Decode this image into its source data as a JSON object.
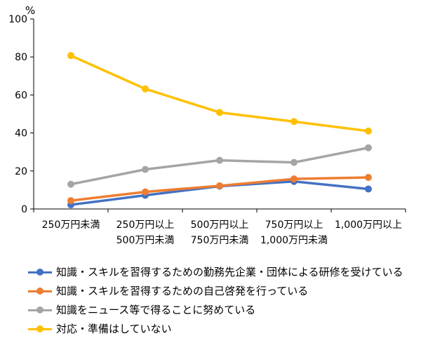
{
  "chart_data": {
    "type": "line",
    "unit_label": "%",
    "y_ticks": [
      "0",
      "20",
      "40",
      "60",
      "80",
      "100"
    ],
    "ylim": [
      0,
      100
    ],
    "grid": false,
    "legend_position": "bottom",
    "categories": [
      [
        "250万円未満"
      ],
      [
        "250万円以上",
        "500万円未満"
      ],
      [
        "500万円以上",
        "750万円未満"
      ],
      [
        "750万円以上",
        "1,000万円未満"
      ],
      [
        "1,000万円以上"
      ]
    ],
    "series": [
      {
        "name": "知識・スキルを習得するための勤務先企業・団体による研修を受けている",
        "color": "#4472c4",
        "values": [
          2.2,
          7.2,
          12.0,
          14.5,
          10.5
        ]
      },
      {
        "name": "知識・スキルを習得するための自己啓発を行っている",
        "color": "#ed7d31",
        "values": [
          4.4,
          9.0,
          12.2,
          15.8,
          16.6
        ]
      },
      {
        "name": "知識をニュース等で得ることに努めている",
        "color": "#a5a5a5",
        "values": [
          13.0,
          20.8,
          25.6,
          24.5,
          32.2
        ]
      },
      {
        "name": "対応・準備はしていない",
        "color": "#ffc000",
        "values": [
          80.7,
          63.2,
          50.8,
          46.0,
          41.0
        ]
      }
    ]
  }
}
